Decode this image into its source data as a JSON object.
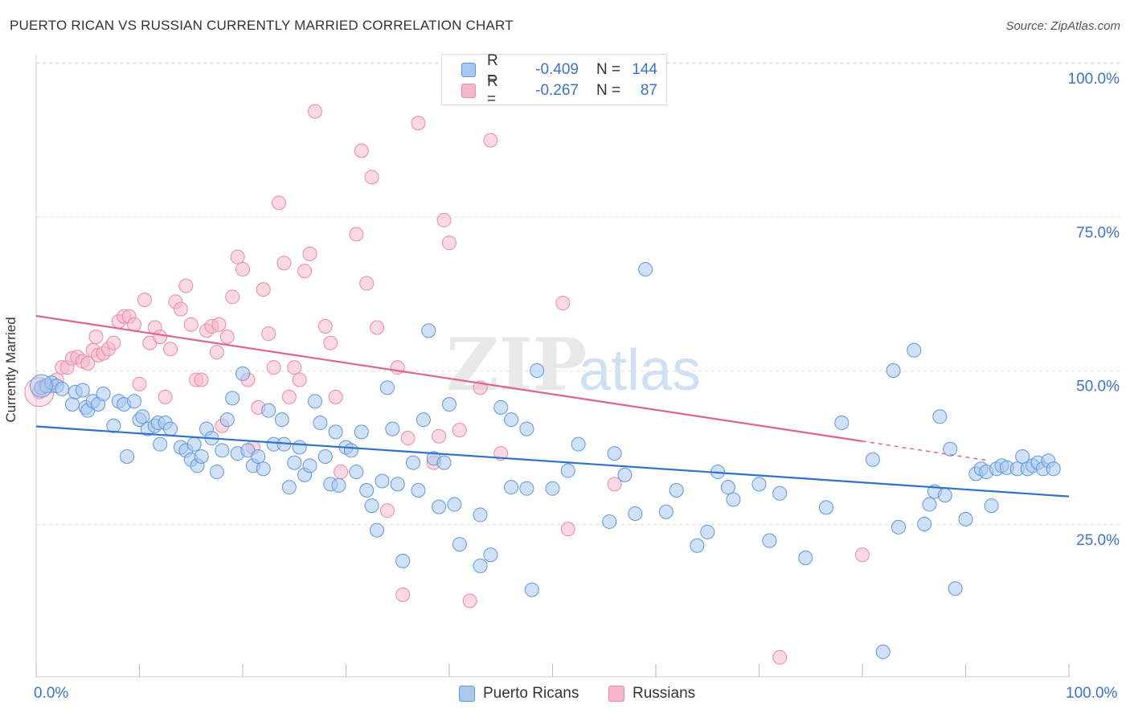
{
  "header": {
    "title": "PUERTO RICAN VS RUSSIAN CURRENTLY MARRIED CORRELATION CHART",
    "source": "Source: ZipAtlas.com"
  },
  "watermark": {
    "zip": "ZIP",
    "atlas": "atlas"
  },
  "legend_stats": [
    {
      "swatch_color": "#a9c8f0",
      "r_label": "R =",
      "r_value": "-0.409",
      "n_label": "N =",
      "n_value": "144"
    },
    {
      "swatch_color": "#f7b8cb",
      "r_label": "R =",
      "r_value": "-0.267",
      "n_label": "N =",
      "n_value": "87"
    }
  ],
  "legend_bottom": [
    {
      "name": "Puerto Ricans",
      "color": "#a9c8f0"
    },
    {
      "name": "Russians",
      "color": "#f7b8cb"
    }
  ],
  "colors": {
    "blue_fill": "#a9c8f0",
    "blue_stroke": "#5f97db",
    "blue_line": "#2f72c9",
    "pink_fill": "#f7b8cb",
    "pink_stroke": "#e88aa8",
    "pink_line": "#e0638e",
    "axis_text": "#3a74c9",
    "grid": "#dddddd"
  },
  "chart_data": {
    "type": "scatter",
    "title": "PUERTO RICAN VS RUSSIAN CURRENTLY MARRIED CORRELATION CHART",
    "xlabel": "",
    "ylabel": "Currently Married",
    "xlim": [
      0,
      100
    ],
    "ylim": [
      0,
      100
    ],
    "x_tick_labels": [
      "0.0%",
      "100.0%"
    ],
    "y_ticks": [
      25,
      50,
      75,
      100
    ],
    "y_tick_labels": [
      "25.0%",
      "50.0%",
      "75.0%",
      "100.0%"
    ],
    "grid": true,
    "legend_position": "top-center",
    "series": [
      {
        "name": "Puerto Ricans",
        "r": -0.409,
        "n": 144,
        "trend": {
          "x": [
            0,
            100
          ],
          "y": [
            40.9,
            29.5
          ]
        },
        "points": [
          [
            0.5,
            47.2
          ],
          [
            1,
            47.5
          ],
          [
            1.5,
            48
          ],
          [
            2,
            47.5
          ],
          [
            2.5,
            47
          ],
          [
            3.5,
            44.5
          ],
          [
            3.8,
            46.5
          ],
          [
            4.5,
            46.8
          ],
          [
            4.8,
            44
          ],
          [
            5,
            43.5
          ],
          [
            5.5,
            45
          ],
          [
            6,
            44.5
          ],
          [
            6.5,
            46.2
          ],
          [
            7.5,
            41
          ],
          [
            8,
            45
          ],
          [
            8.5,
            44.5
          ],
          [
            8.8,
            36
          ],
          [
            9.5,
            45
          ],
          [
            10,
            42
          ],
          [
            10.3,
            42.5
          ],
          [
            10.8,
            40.5
          ],
          [
            11.5,
            41
          ],
          [
            11.8,
            41.5
          ],
          [
            12,
            38
          ],
          [
            12.5,
            41.5
          ],
          [
            13,
            40.5
          ],
          [
            14,
            37.5
          ],
          [
            14.5,
            37
          ],
          [
            15,
            35.5
          ],
          [
            15.3,
            38
          ],
          [
            15.6,
            34.5
          ],
          [
            16,
            36
          ],
          [
            16.5,
            40.5
          ],
          [
            17,
            39
          ],
          [
            17.5,
            33.5
          ],
          [
            18,
            37
          ],
          [
            18.5,
            42
          ],
          [
            19,
            45.5
          ],
          [
            19.5,
            36.5
          ],
          [
            20,
            49.5
          ],
          [
            20.5,
            37
          ],
          [
            21,
            34.5
          ],
          [
            21.5,
            36
          ],
          [
            22,
            34
          ],
          [
            22.5,
            43.5
          ],
          [
            23,
            38
          ],
          [
            23.8,
            42
          ],
          [
            24,
            38
          ],
          [
            24.5,
            31
          ],
          [
            25,
            35
          ],
          [
            25.5,
            37.5
          ],
          [
            26,
            33
          ],
          [
            26.5,
            34.5
          ],
          [
            27,
            45
          ],
          [
            27.5,
            41.5
          ],
          [
            28,
            36
          ],
          [
            28.5,
            31.5
          ],
          [
            29,
            40
          ],
          [
            29.3,
            31.3
          ],
          [
            30,
            37.5
          ],
          [
            30.5,
            37
          ],
          [
            31,
            33.5
          ],
          [
            31.5,
            40
          ],
          [
            32,
            30.5
          ],
          [
            32.5,
            28
          ],
          [
            33,
            24
          ],
          [
            33.5,
            32
          ],
          [
            34,
            47.2
          ],
          [
            34.5,
            40.5
          ],
          [
            35,
            31.5
          ],
          [
            35.5,
            19
          ],
          [
            36.5,
            35
          ],
          [
            37,
            30.5
          ],
          [
            37.5,
            42
          ],
          [
            38,
            56.5
          ],
          [
            38.5,
            35.7
          ],
          [
            39,
            27.8
          ],
          [
            39.5,
            35
          ],
          [
            40,
            44.5
          ],
          [
            40.5,
            28.2
          ],
          [
            41,
            21.7
          ],
          [
            43,
            26.5
          ],
          [
            43,
            18.2
          ],
          [
            44,
            20
          ],
          [
            46,
            31
          ],
          [
            45,
            44
          ],
          [
            46,
            42
          ],
          [
            47.5,
            40.5
          ],
          [
            47.5,
            30.8
          ],
          [
            48,
            14.3
          ],
          [
            48.5,
            50
          ],
          [
            50,
            30.8
          ],
          [
            51.5,
            33.7
          ],
          [
            52.5,
            38
          ],
          [
            55.5,
            25.4
          ],
          [
            56,
            36.5
          ],
          [
            57,
            33
          ],
          [
            58,
            26.7
          ],
          [
            59,
            66.5
          ],
          [
            61,
            27
          ],
          [
            62,
            30.5
          ],
          [
            64,
            21.5
          ],
          [
            65,
            23.7
          ],
          [
            66,
            33.5
          ],
          [
            67,
            31
          ],
          [
            67.5,
            29
          ],
          [
            70,
            31.5
          ],
          [
            71,
            22.3
          ],
          [
            72,
            30
          ],
          [
            74.5,
            19.5
          ],
          [
            76.5,
            27.7
          ],
          [
            78,
            41.5
          ],
          [
            81,
            35.5
          ],
          [
            82,
            4.2
          ],
          [
            83,
            50
          ],
          [
            83.5,
            24.5
          ],
          [
            85,
            53.3
          ],
          [
            86,
            25
          ],
          [
            86.5,
            28.2
          ],
          [
            87,
            30.3
          ],
          [
            87.5,
            42.5
          ],
          [
            88,
            29.7
          ],
          [
            88.5,
            37.2
          ],
          [
            89,
            14.5
          ],
          [
            90,
            25.8
          ],
          [
            91,
            33.2
          ],
          [
            91.5,
            34
          ],
          [
            92,
            33.5
          ],
          [
            92.5,
            28
          ],
          [
            93,
            34
          ],
          [
            93.5,
            34.5
          ],
          [
            94,
            34.2
          ],
          [
            95,
            34
          ],
          [
            95.5,
            36
          ],
          [
            96,
            34
          ],
          [
            96.5,
            34.5
          ],
          [
            97,
            35
          ],
          [
            97.5,
            34
          ],
          [
            98,
            35.3
          ],
          [
            98.5,
            34
          ]
        ]
      },
      {
        "name": "Russians",
        "r": -0.267,
        "n": 87,
        "trend": {
          "x": [
            0,
            80
          ],
          "y": [
            58.9,
            38.5
          ]
        },
        "trend_dashed": {
          "x": [
            80,
            92
          ],
          "y": [
            38.5,
            35.4
          ]
        },
        "points": [
          [
            0.3,
            46.5
          ],
          [
            0.8,
            47.5
          ],
          [
            1.5,
            47.5
          ],
          [
            2,
            48.5
          ],
          [
            2.5,
            50.5
          ],
          [
            3,
            50.5
          ],
          [
            3.5,
            52
          ],
          [
            4,
            52.2
          ],
          [
            4.5,
            51.5
          ],
          [
            5,
            51.2
          ],
          [
            5.5,
            53.3
          ],
          [
            5.8,
            55.5
          ],
          [
            6,
            52.5
          ],
          [
            6.5,
            52.8
          ],
          [
            7,
            53.5
          ],
          [
            7.5,
            54.5
          ],
          [
            8,
            58
          ],
          [
            8.5,
            58.8
          ],
          [
            9,
            58.8
          ],
          [
            9.5,
            57.5
          ],
          [
            10,
            47.8
          ],
          [
            10.5,
            61.5
          ],
          [
            11,
            54.5
          ],
          [
            11.5,
            57
          ],
          [
            12,
            55.5
          ],
          [
            12.5,
            45.7
          ],
          [
            13,
            53.5
          ],
          [
            13.5,
            61.2
          ],
          [
            14,
            60
          ],
          [
            14.5,
            63.8
          ],
          [
            15,
            57.5
          ],
          [
            15.5,
            48.5
          ],
          [
            16,
            48.5
          ],
          [
            16.5,
            56.5
          ],
          [
            17,
            57.2
          ],
          [
            17.5,
            53
          ],
          [
            17.7,
            57.5
          ],
          [
            18,
            41
          ],
          [
            18.5,
            55.5
          ],
          [
            19,
            62
          ],
          [
            19.5,
            68.5
          ],
          [
            20,
            66.5
          ],
          [
            20.5,
            48.5
          ],
          [
            21,
            37.5
          ],
          [
            21.5,
            44
          ],
          [
            22,
            63.2
          ],
          [
            22.5,
            56
          ],
          [
            23,
            50.5
          ],
          [
            23.5,
            77.3
          ],
          [
            24,
            67.5
          ],
          [
            24.5,
            45.7
          ],
          [
            25,
            50.5
          ],
          [
            25.5,
            48.5
          ],
          [
            26,
            66.2
          ],
          [
            26.5,
            69
          ],
          [
            27,
            92.2
          ],
          [
            28,
            57.2
          ],
          [
            28.5,
            54.5
          ],
          [
            29,
            45.7
          ],
          [
            29.5,
            33.5
          ],
          [
            31,
            72.2
          ],
          [
            31.5,
            85.8
          ],
          [
            32,
            64.2
          ],
          [
            32.5,
            81.5
          ],
          [
            33,
            57
          ],
          [
            34,
            27.2
          ],
          [
            35,
            50.5
          ],
          [
            35.5,
            13.5
          ],
          [
            36,
            39
          ],
          [
            37,
            90.3
          ],
          [
            38.5,
            35
          ],
          [
            39,
            39.3
          ],
          [
            39.5,
            74.5
          ],
          [
            40,
            70.8
          ],
          [
            41,
            40.3
          ],
          [
            42,
            12.5
          ],
          [
            43,
            47.2
          ],
          [
            44,
            87.5
          ],
          [
            45,
            36.5
          ],
          [
            51,
            61
          ],
          [
            51.5,
            24.2
          ],
          [
            56,
            31.5
          ],
          [
            72,
            3.3
          ],
          [
            80,
            20
          ]
        ]
      }
    ]
  }
}
